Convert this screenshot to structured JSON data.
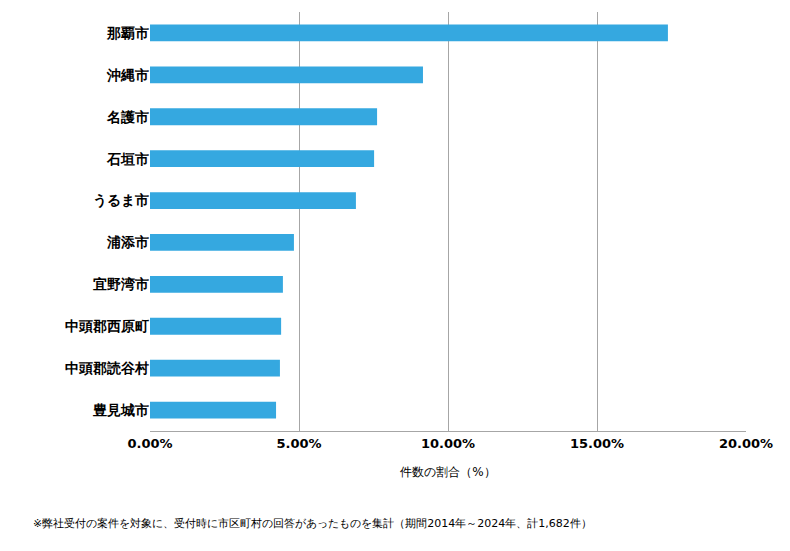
{
  "chart_data": {
    "type": "bar",
    "orientation": "horizontal",
    "categories": [
      "那覇市",
      "沖縄市",
      "名護市",
      "石垣市",
      "うるま市",
      "浦添市",
      "宜野湾市",
      "中頭郡西原町",
      "中頭郡読谷村",
      "豊見城市"
    ],
    "values": [
      17.38,
      9.16,
      7.62,
      7.52,
      6.91,
      4.83,
      4.46,
      4.4,
      4.36,
      4.23
    ],
    "color": "#35a8e0",
    "x_label": "件数の割合（%）",
    "xlim": [
      0,
      20
    ],
    "xticks": [
      {
        "value": 0,
        "label": "0.00%"
      },
      {
        "value": 5,
        "label": "5.00%"
      },
      {
        "value": 10,
        "label": "10.00%"
      },
      {
        "value": 15,
        "label": "15.00%"
      },
      {
        "value": 20,
        "label": "20.00%"
      }
    ],
    "grid": true,
    "annotations": [
      "※弊社受付の案件を対象に、受付時に市区町村の回答があったものを集計（期間2014年～2024年、計1,682件）"
    ]
  }
}
